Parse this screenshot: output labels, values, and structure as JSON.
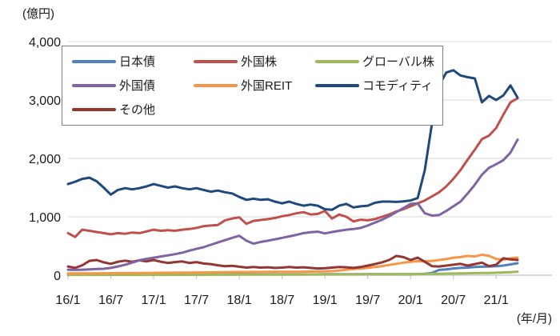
{
  "axes": {
    "y_unit": "(億円)",
    "x_unit": "(年/月)"
  },
  "chart_data": {
    "type": "line",
    "title": "",
    "xlabel": "(年/月)",
    "ylabel": "(億円)",
    "ylim": [
      0,
      4000
    ],
    "grid": "horizontal",
    "legend_position": "top-inside-box",
    "y_ticks": [
      {
        "value": 4000,
        "label": "4,000"
      },
      {
        "value": 3000,
        "label": "3,000"
      },
      {
        "value": 2000,
        "label": "2,000"
      },
      {
        "value": 1000,
        "label": "1,000"
      },
      {
        "value": 0,
        "label": "0"
      }
    ],
    "x_tick_labels": [
      "16/1",
      "16/7",
      "17/1",
      "17/7",
      "18/1",
      "18/7",
      "19/1",
      "19/7",
      "20/1",
      "20/7",
      "21/1"
    ],
    "x": [
      "16/1",
      "16/2",
      "16/3",
      "16/4",
      "16/5",
      "16/6",
      "16/7",
      "16/8",
      "16/9",
      "16/10",
      "16/11",
      "16/12",
      "17/1",
      "17/2",
      "17/3",
      "17/4",
      "17/5",
      "17/6",
      "17/7",
      "17/8",
      "17/9",
      "17/10",
      "17/11",
      "17/12",
      "18/1",
      "18/2",
      "18/3",
      "18/4",
      "18/5",
      "18/6",
      "18/7",
      "18/8",
      "18/9",
      "18/10",
      "18/11",
      "18/12",
      "19/1",
      "19/2",
      "19/3",
      "19/4",
      "19/5",
      "19/6",
      "19/7",
      "19/8",
      "19/9",
      "19/10",
      "19/11",
      "19/12",
      "20/1",
      "20/2",
      "20/3",
      "20/4",
      "20/5",
      "20/6",
      "20/7",
      "20/8",
      "20/9",
      "20/10",
      "20/11",
      "20/12",
      "21/1",
      "21/2",
      "21/3",
      "21/4"
    ],
    "series": [
      {
        "key": "japan-bonds",
        "name": "日本債",
        "color": "#4f81bd",
        "values": [
          10,
          10,
          10,
          10,
          10,
          10,
          10,
          10,
          10,
          10,
          10,
          10,
          12,
          12,
          12,
          12,
          12,
          12,
          12,
          12,
          12,
          12,
          12,
          12,
          14,
          14,
          14,
          14,
          14,
          14,
          14,
          14,
          14,
          14,
          14,
          14,
          16,
          16,
          16,
          16,
          16,
          16,
          16,
          16,
          16,
          16,
          16,
          16,
          18,
          20,
          25,
          40,
          90,
          100,
          115,
          125,
          130,
          140,
          145,
          150,
          155,
          165,
          185,
          205
        ]
      },
      {
        "key": "foreign-stocks",
        "name": "外国株",
        "color": "#c0504d",
        "values": [
          720,
          655,
          780,
          760,
          740,
          720,
          700,
          720,
          710,
          730,
          720,
          750,
          780,
          760,
          770,
          760,
          780,
          790,
          810,
          840,
          850,
          860,
          940,
          970,
          990,
          880,
          930,
          945,
          960,
          980,
          1010,
          1030,
          1060,
          1080,
          1040,
          1050,
          1100,
          970,
          1040,
          1000,
          920,
          950,
          940,
          960,
          1000,
          1040,
          1090,
          1130,
          1180,
          1230,
          1280,
          1350,
          1420,
          1520,
          1650,
          1800,
          1980,
          2150,
          2330,
          2390,
          2520,
          2750,
          2960,
          3030
        ]
      },
      {
        "key": "global-stocks",
        "name": "グローバル株",
        "color": "#9bbb59",
        "values": [
          5,
          5,
          5,
          5,
          5,
          5,
          5,
          5,
          5,
          5,
          5,
          5,
          6,
          6,
          6,
          6,
          6,
          7,
          7,
          7,
          8,
          8,
          8,
          8,
          9,
          9,
          9,
          10,
          10,
          10,
          10,
          11,
          11,
          11,
          12,
          12,
          12,
          13,
          13,
          14,
          14,
          15,
          15,
          16,
          16,
          17,
          18,
          19,
          20,
          21,
          22,
          23,
          25,
          27,
          29,
          31,
          33,
          35,
          37,
          39,
          42,
          46,
          52,
          60
        ]
      },
      {
        "key": "foreign-bonds",
        "name": "外国債",
        "color": "#8064a2",
        "values": [
          95,
          90,
          95,
          100,
          105,
          110,
          125,
          150,
          180,
          215,
          255,
          280,
          300,
          320,
          340,
          360,
          385,
          420,
          450,
          480,
          520,
          560,
          600,
          640,
          675,
          590,
          540,
          570,
          590,
          615,
          640,
          665,
          690,
          720,
          735,
          745,
          715,
          740,
          760,
          780,
          790,
          810,
          850,
          900,
          950,
          1010,
          1080,
          1150,
          1220,
          1230,
          1060,
          1020,
          1030,
          1100,
          1180,
          1260,
          1400,
          1550,
          1720,
          1840,
          1900,
          1970,
          2100,
          2320
        ]
      },
      {
        "key": "foreign-reit",
        "name": "外国REIT",
        "color": "#f79646",
        "values": [
          30,
          30,
          30,
          32,
          32,
          33,
          34,
          35,
          35,
          36,
          37,
          38,
          40,
          41,
          42,
          43,
          44,
          45,
          46,
          47,
          48,
          50,
          52,
          54,
          55,
          55,
          56,
          56,
          57,
          57,
          58,
          58,
          59,
          60,
          61,
          62,
          65,
          70,
          80,
          95,
          105,
          115,
          125,
          140,
          155,
          175,
          195,
          215,
          230,
          240,
          235,
          245,
          260,
          275,
          300,
          310,
          330,
          320,
          350,
          330,
          280,
          265,
          290,
          300
        ]
      },
      {
        "key": "commodities",
        "name": "コモディティ",
        "color": "#1f497d",
        "values": [
          1560,
          1600,
          1650,
          1670,
          1610,
          1500,
          1380,
          1460,
          1490,
          1470,
          1490,
          1520,
          1560,
          1530,
          1500,
          1520,
          1490,
          1470,
          1490,
          1460,
          1430,
          1450,
          1420,
          1400,
          1340,
          1290,
          1310,
          1290,
          1300,
          1260,
          1230,
          1260,
          1220,
          1190,
          1210,
          1190,
          1130,
          1120,
          1190,
          1220,
          1160,
          1180,
          1190,
          1240,
          1260,
          1260,
          1255,
          1265,
          1280,
          1320,
          1800,
          2600,
          3250,
          3470,
          3510,
          3420,
          3390,
          3370,
          2960,
          3070,
          3000,
          3080,
          3250,
          3040
        ]
      },
      {
        "key": "others",
        "name": "その他",
        "color": "#943634",
        "values": [
          150,
          125,
          170,
          245,
          260,
          220,
          195,
          230,
          250,
          230,
          255,
          235,
          260,
          230,
          210,
          225,
          235,
          210,
          225,
          200,
          190,
          170,
          155,
          160,
          145,
          130,
          140,
          130,
          135,
          125,
          130,
          140,
          130,
          135,
          125,
          115,
          120,
          130,
          140,
          135,
          125,
          140,
          165,
          190,
          220,
          260,
          330,
          310,
          260,
          300,
          230,
          155,
          150,
          165,
          180,
          195,
          165,
          190,
          215,
          155,
          180,
          290,
          270,
          260
        ]
      }
    ]
  }
}
